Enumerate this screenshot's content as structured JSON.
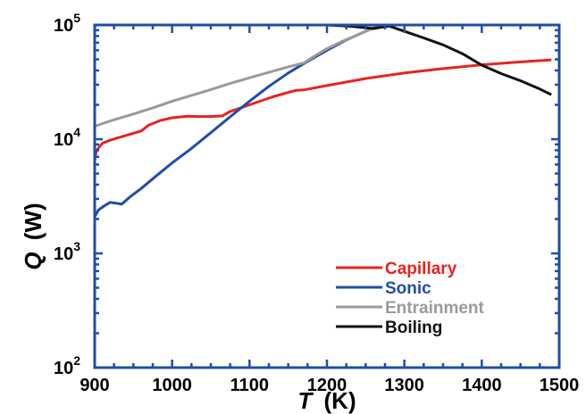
{
  "chart_data": {
    "type": "line",
    "xlabel": "T (K)",
    "xlabel_var": "T",
    "xlabel_unit": "(K)",
    "ylabel": "Q (W)",
    "ylabel_var": "Q",
    "ylabel_unit": "(W)",
    "xlim": [
      900,
      1500
    ],
    "ylim": [
      100,
      100000
    ],
    "yscale": "log",
    "x_ticks": [
      {
        "value": 900,
        "label": "900"
      },
      {
        "value": 1000,
        "label": "1000"
      },
      {
        "value": 1100,
        "label": "1100"
      },
      {
        "value": 1200,
        "label": "1200"
      },
      {
        "value": 1300,
        "label": "1300"
      },
      {
        "value": 1400,
        "label": "1400"
      },
      {
        "value": 1500,
        "label": "1500"
      }
    ],
    "y_ticks": [
      {
        "value": 100,
        "base": "10",
        "exp": "2"
      },
      {
        "value": 1000,
        "base": "10",
        "exp": "3"
      },
      {
        "value": 10000,
        "base": "10",
        "exp": "4"
      },
      {
        "value": 100000,
        "base": "10",
        "exp": "5"
      }
    ],
    "grid": false,
    "legend_position": "bottom-right",
    "axis_color": "#1f4ea8",
    "series": [
      {
        "name": "Capillary",
        "color": "#e8231e",
        "points": [
          [
            900,
            6500
          ],
          [
            902,
            7800
          ],
          [
            906,
            8600
          ],
          [
            910,
            9200
          ],
          [
            918,
            9700
          ],
          [
            930,
            10300
          ],
          [
            945,
            11000
          ],
          [
            960,
            11800
          ],
          [
            970,
            13300
          ],
          [
            985,
            14600
          ],
          [
            1000,
            15400
          ],
          [
            1020,
            15900
          ],
          [
            1035,
            15800
          ],
          [
            1050,
            15800
          ],
          [
            1065,
            16000
          ],
          [
            1075,
            17500
          ],
          [
            1100,
            20000
          ],
          [
            1130,
            23500
          ],
          [
            1160,
            26800
          ],
          [
            1170,
            27000
          ],
          [
            1200,
            29500
          ],
          [
            1250,
            34000
          ],
          [
            1300,
            38000
          ],
          [
            1350,
            41500
          ],
          [
            1400,
            44800
          ],
          [
            1450,
            47500
          ],
          [
            1490,
            49500
          ]
        ]
      },
      {
        "name": "Sonic",
        "color": "#1f4ea8",
        "points": [
          [
            900,
            2100
          ],
          [
            905,
            2400
          ],
          [
            912,
            2600
          ],
          [
            920,
            2800
          ],
          [
            928,
            2750
          ],
          [
            935,
            2700
          ],
          [
            945,
            3100
          ],
          [
            960,
            3700
          ],
          [
            980,
            4800
          ],
          [
            1000,
            6200
          ],
          [
            1025,
            8300
          ],
          [
            1050,
            11400
          ],
          [
            1075,
            15700
          ],
          [
            1100,
            21500
          ],
          [
            1125,
            29000
          ],
          [
            1150,
            38000
          ],
          [
            1175,
            48000
          ],
          [
            1200,
            60000
          ],
          [
            1225,
            74000
          ],
          [
            1250,
            88000
          ],
          [
            1268,
            100000
          ]
        ]
      },
      {
        "name": "Entrainment",
        "color": "#9a9a9a",
        "points": [
          [
            900,
            13000
          ],
          [
            925,
            14800
          ],
          [
            950,
            16600
          ],
          [
            975,
            18800
          ],
          [
            1000,
            21500
          ],
          [
            1025,
            24200
          ],
          [
            1050,
            27200
          ],
          [
            1075,
            30800
          ],
          [
            1100,
            34500
          ],
          [
            1125,
            38500
          ],
          [
            1150,
            43000
          ],
          [
            1170,
            46500
          ],
          [
            1185,
            54000
          ],
          [
            1200,
            62000
          ],
          [
            1220,
            72000
          ],
          [
            1240,
            82000
          ],
          [
            1258,
            93000
          ],
          [
            1265,
            100000
          ]
        ]
      },
      {
        "name": "Boiling",
        "color": "#111111",
        "points": [
          [
            1200,
            100000
          ],
          [
            1230,
            97500
          ],
          [
            1260,
            93000
          ],
          [
            1280,
            98000
          ],
          [
            1300,
            88000
          ],
          [
            1325,
            77000
          ],
          [
            1350,
            67000
          ],
          [
            1375,
            56000
          ],
          [
            1400,
            44500
          ],
          [
            1425,
            37500
          ],
          [
            1450,
            32500
          ],
          [
            1475,
            27500
          ],
          [
            1490,
            24500
          ]
        ]
      }
    ]
  }
}
